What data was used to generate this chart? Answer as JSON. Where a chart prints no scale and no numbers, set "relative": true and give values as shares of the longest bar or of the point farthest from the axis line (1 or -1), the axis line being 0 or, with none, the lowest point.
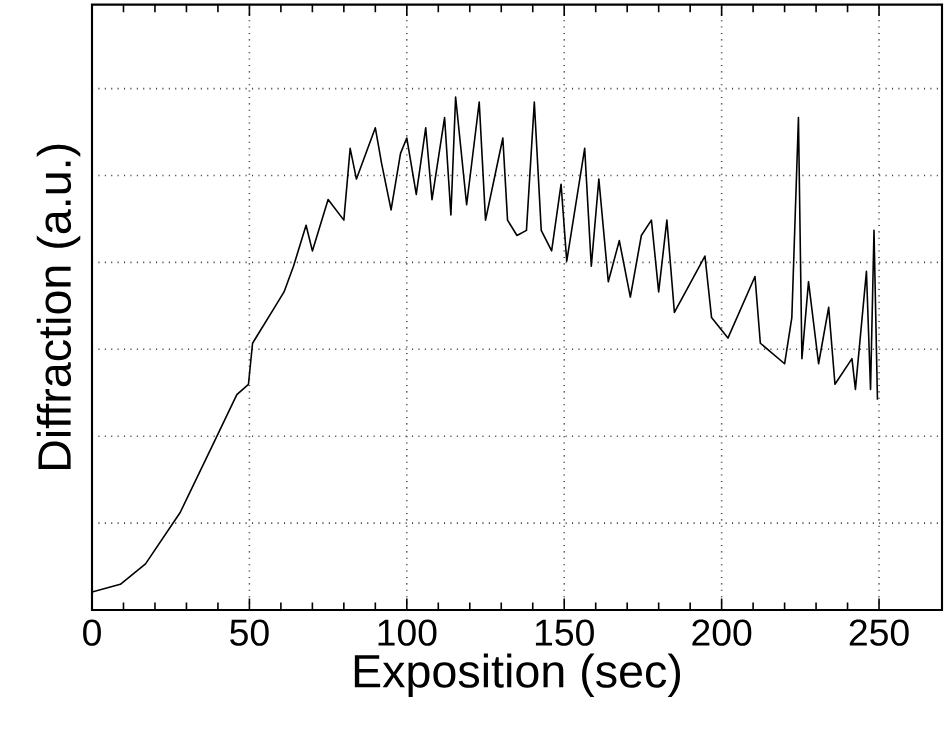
{
  "chart_data": {
    "type": "line",
    "xlabel": "Exposition (sec)",
    "ylabel": "Diffraction (a.u.)",
    "relative": true,
    "xlim": [
      0,
      270
    ],
    "xticks": [
      0,
      50,
      100,
      150,
      200,
      250
    ],
    "grid": true,
    "tick_labels": "x",
    "marker": "none",
    "line_style": "solid",
    "x": [
      0,
      9,
      17,
      28,
      39,
      46,
      49.7,
      51,
      58,
      61,
      64,
      68,
      70,
      75,
      80,
      82,
      84,
      90,
      92,
      95,
      98,
      100,
      103,
      106,
      108,
      112,
      114,
      115.5,
      119,
      123,
      125,
      130.5,
      132,
      135,
      138,
      140.5,
      142.7,
      146,
      149,
      150.8,
      156.5,
      158.6,
      161,
      164,
      167.5,
      171,
      174.5,
      177.7,
      180,
      182.6,
      185,
      194.7,
      196.8,
      202,
      210.6,
      212.3,
      220,
      222.3,
      224.4,
      225.5,
      227.6,
      230.8,
      234,
      236,
      241.4,
      242.5,
      246,
      247.3,
      248.4,
      249.5
    ],
    "series": [
      {
        "color": "#000000",
        "values": [
          0.035,
          0.05,
          0.09,
          0.19,
          0.33,
          0.42,
          0.44,
          0.52,
          0.59,
          0.62,
          0.67,
          0.75,
          0.7,
          0.8,
          0.76,
          0.9,
          0.84,
          0.94,
          0.87,
          0.78,
          0.89,
          0.92,
          0.81,
          0.94,
          0.8,
          0.96,
          0.77,
          1.0,
          0.79,
          0.99,
          0.76,
          0.92,
          0.76,
          0.73,
          0.74,
          0.99,
          0.74,
          0.7,
          0.83,
          0.68,
          0.9,
          0.67,
          0.84,
          0.64,
          0.72,
          0.61,
          0.73,
          0.76,
          0.62,
          0.76,
          0.58,
          0.69,
          0.57,
          0.53,
          0.65,
          0.52,
          0.48,
          0.57,
          0.96,
          0.49,
          0.64,
          0.48,
          0.59,
          0.44,
          0.49,
          0.43,
          0.66,
          0.43,
          0.74,
          0.41
        ]
      }
    ]
  }
}
